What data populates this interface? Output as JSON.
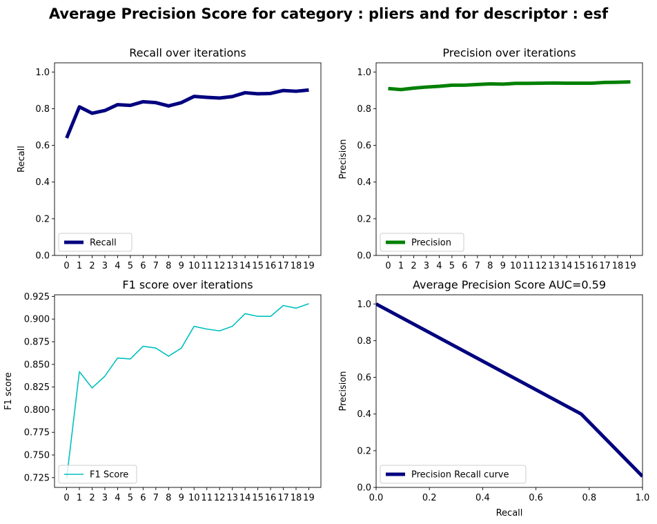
{
  "figure": {
    "title": "Average Precision Score for category : pliers and for descriptor : esf"
  },
  "chart_data": [
    {
      "type": "line",
      "title": "Recall over iterations",
      "xlabel": "",
      "ylabel": "Recall",
      "x": [
        0,
        1,
        2,
        3,
        4,
        5,
        6,
        7,
        8,
        9,
        10,
        11,
        12,
        13,
        14,
        15,
        16,
        17,
        18,
        19
      ],
      "xticks": [
        0,
        1,
        2,
        3,
        4,
        5,
        6,
        7,
        8,
        9,
        10,
        11,
        12,
        13,
        14,
        15,
        16,
        17,
        18,
        19
      ],
      "ylim": [
        0,
        1.05
      ],
      "yticks": [
        0.0,
        0.2,
        0.4,
        0.6,
        0.8,
        1.0
      ],
      "ytick_labels": [
        "0.0",
        "0.2",
        "0.4",
        "0.6",
        "0.8",
        "1.0"
      ],
      "series": [
        {
          "name": "Recall",
          "color": "#00007f",
          "values": [
            0.64,
            0.81,
            0.775,
            0.79,
            0.822,
            0.818,
            0.838,
            0.833,
            0.815,
            0.833,
            0.867,
            0.862,
            0.858,
            0.866,
            0.887,
            0.881,
            0.883,
            0.899,
            0.895,
            0.902
          ]
        }
      ],
      "legend": "lower-left",
      "grid": false
    },
    {
      "type": "line",
      "title": "Precision over iterations",
      "xlabel": "",
      "ylabel": "Precision",
      "x": [
        0,
        1,
        2,
        3,
        4,
        5,
        6,
        7,
        8,
        9,
        10,
        11,
        12,
        13,
        14,
        15,
        16,
        17,
        18,
        19
      ],
      "xticks": [
        0,
        1,
        2,
        3,
        4,
        5,
        6,
        7,
        8,
        9,
        10,
        11,
        12,
        13,
        14,
        15,
        16,
        17,
        18,
        19
      ],
      "ylim": [
        0,
        1.05
      ],
      "yticks": [
        0.0,
        0.2,
        0.4,
        0.6,
        0.8,
        1.0
      ],
      "ytick_labels": [
        "0.0",
        "0.2",
        "0.4",
        "0.6",
        "0.8",
        "1.0"
      ],
      "series": [
        {
          "name": "Precision",
          "color": "#008000",
          "values": [
            0.91,
            0.904,
            0.912,
            0.918,
            0.922,
            0.928,
            0.928,
            0.932,
            0.935,
            0.934,
            0.938,
            0.938,
            0.939,
            0.94,
            0.939,
            0.939,
            0.939,
            0.943,
            0.944,
            0.946
          ]
        }
      ],
      "legend": "lower-left",
      "grid": false
    },
    {
      "type": "line",
      "title": "F1 score over iterations",
      "xlabel": "",
      "ylabel": "F1 score",
      "x": [
        0,
        1,
        2,
        3,
        4,
        5,
        6,
        7,
        8,
        9,
        10,
        11,
        12,
        13,
        14,
        15,
        16,
        17,
        18,
        19
      ],
      "xticks": [
        0,
        1,
        2,
        3,
        4,
        5,
        6,
        7,
        8,
        9,
        10,
        11,
        12,
        13,
        14,
        15,
        16,
        17,
        18,
        19
      ],
      "ylim": [
        0.7142,
        0.9268
      ],
      "yticks": [
        0.725,
        0.75,
        0.775,
        0.8,
        0.825,
        0.85,
        0.875,
        0.9,
        0.925
      ],
      "ytick_labels": [
        "0.725",
        "0.750",
        "0.775",
        "0.800",
        "0.825",
        "0.850",
        "0.875",
        "0.900",
        "0.925"
      ],
      "series": [
        {
          "name": "F1 Score",
          "color": "#00bfbf",
          "values": [
            0.724,
            0.842,
            0.824,
            0.837,
            0.857,
            0.856,
            0.87,
            0.868,
            0.859,
            0.868,
            0.892,
            0.889,
            0.887,
            0.892,
            0.906,
            0.903,
            0.903,
            0.915,
            0.912,
            0.917
          ]
        }
      ],
      "legend": "lower-left",
      "grid": false
    },
    {
      "type": "line",
      "title": "Average Precision Score AUC=0.59",
      "xlabel": "Recall",
      "ylabel": "Precision",
      "xlim": [
        0,
        1
      ],
      "ylim": [
        0,
        1.05
      ],
      "xticks": [
        0.0,
        0.2,
        0.4,
        0.6,
        0.8,
        1.0
      ],
      "xtick_labels": [
        "0.0",
        "0.2",
        "0.4",
        "0.6",
        "0.8",
        "1.0"
      ],
      "yticks": [
        0.0,
        0.2,
        0.4,
        0.6,
        0.8,
        1.0
      ],
      "ytick_labels": [
        "0.0",
        "0.2",
        "0.4",
        "0.6",
        "0.8",
        "1.0"
      ],
      "series": [
        {
          "name": "Precision Recall curve",
          "color": "#00007f",
          "x": [
            0.0,
            0.77,
            1.0
          ],
          "values": [
            1.0,
            0.4,
            0.06
          ]
        }
      ],
      "legend": "lower-left",
      "grid": false
    }
  ]
}
